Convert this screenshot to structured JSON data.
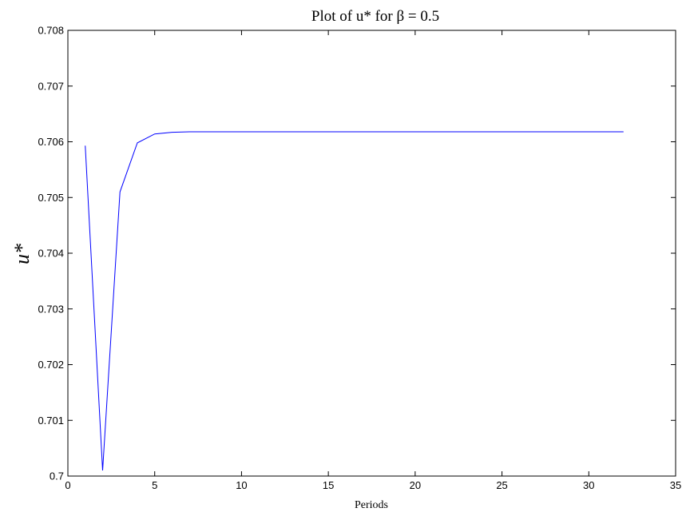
{
  "chart_data": {
    "type": "line",
    "title": "Plot of u* for β = 0.5",
    "xlabel": "Periods",
    "ylabel": "u*",
    "xlim": [
      0,
      35
    ],
    "ylim": [
      0.7,
      0.708
    ],
    "x_ticks": [
      "0",
      "5",
      "10",
      "15",
      "20",
      "25",
      "30",
      "35"
    ],
    "y_ticks": [
      "0.7",
      "0.701",
      "0.702",
      "0.703",
      "0.704",
      "0.705",
      "0.706",
      "0.707",
      "0.708"
    ],
    "grid": false,
    "series": [
      {
        "color": "#0000ff",
        "x": [
          1,
          2,
          3,
          4,
          5,
          6,
          7,
          8,
          9,
          10,
          11,
          12,
          13,
          14,
          15,
          16,
          17,
          18,
          19,
          20,
          21,
          22,
          23,
          24,
          25,
          26,
          27,
          28,
          29,
          30,
          31,
          32
        ],
        "y": [
          0.70593,
          0.7001,
          0.7051,
          0.70598,
          0.70614,
          0.70617,
          0.70618,
          0.70618,
          0.70618,
          0.70618,
          0.70618,
          0.70618,
          0.70618,
          0.70618,
          0.70618,
          0.70618,
          0.70618,
          0.70618,
          0.70618,
          0.70618,
          0.70618,
          0.70618,
          0.70618,
          0.70618,
          0.70618,
          0.70618,
          0.70618,
          0.70618,
          0.70618,
          0.70618,
          0.70618,
          0.70618
        ]
      }
    ]
  }
}
